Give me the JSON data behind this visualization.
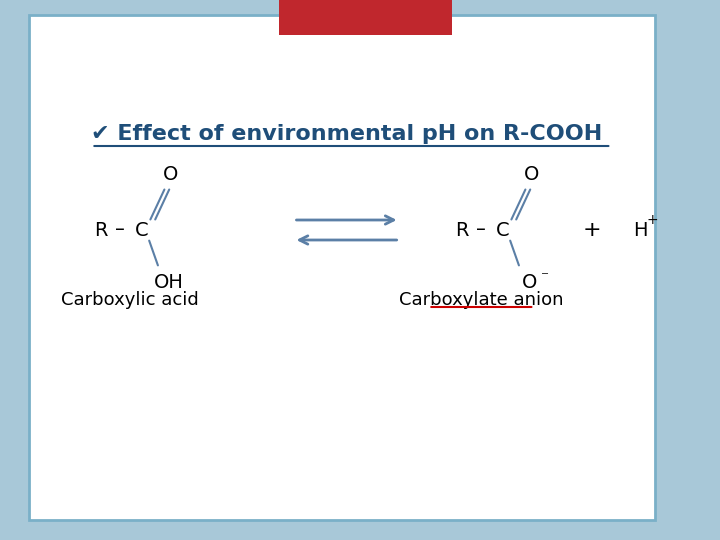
{
  "bg_outer": "#a8c8d8",
  "bg_slide": "#ffffff",
  "red_rect": "#c0272d",
  "title_text": "✔ Effect of environmental pH on R-COOH",
  "title_color": "#1f4e79",
  "title_fontsize": 16,
  "title_underline": true,
  "arrow_color": "#5b7fa6",
  "struct_color": "#000000",
  "label_color": "#000000",
  "carboxylate_underline_color": "#cc0000",
  "left_label": "Carboxylic acid",
  "right_label": "Carboxylate anion"
}
